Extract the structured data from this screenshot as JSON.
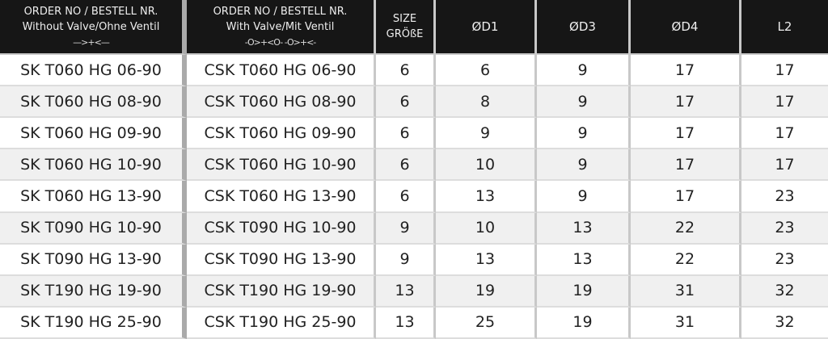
{
  "headers": {
    "col1": {
      "line1": "ORDER NO / BESTELL NR.",
      "line2": "Without Valve/Ohne Ventil",
      "symbol": "—>+<—"
    },
    "col2": {
      "line1": "ORDER NO / BESTELL NR.",
      "line2": "With Valve/Mit Ventil",
      "symbol": "-O>+<O-   -O>+<-"
    },
    "size": {
      "line1": "SIZE",
      "line2": "GRÖßE"
    },
    "d1": "ØD1",
    "d3": "ØD3",
    "d4": "ØD4",
    "l2": "L2"
  },
  "rows": [
    [
      "SK T060 HG 06-90",
      "CSK T060 HG 06-90",
      "6",
      "6",
      "9",
      "17",
      "17"
    ],
    [
      "SK T060 HG 08-90",
      "CSK T060 HG 08-90",
      "6",
      "8",
      "9",
      "17",
      "17"
    ],
    [
      "SK T060 HG 09-90",
      "CSK T060 HG 09-90",
      "6",
      "9",
      "9",
      "17",
      "17"
    ],
    [
      "SK T060 HG 10-90",
      "CSK T060 HG 10-90",
      "6",
      "10",
      "9",
      "17",
      "17"
    ],
    [
      "SK T060 HG 13-90",
      "CSK T060 HG 13-90",
      "6",
      "13",
      "9",
      "17",
      "23"
    ],
    [
      "SK T090 HG 10-90",
      "CSK T090 HG 10-90",
      "9",
      "10",
      "13",
      "22",
      "23"
    ],
    [
      "SK T090 HG 13-90",
      "CSK T090 HG 13-90",
      "9",
      "13",
      "13",
      "22",
      "23"
    ],
    [
      "SK T190 HG 19-90",
      "CSK T190 HG 19-90",
      "13",
      "19",
      "19",
      "31",
      "32"
    ],
    [
      "SK T190 HG 25-90",
      "CSK T190 HG 25-90",
      "13",
      "25",
      "19",
      "31",
      "32"
    ]
  ]
}
